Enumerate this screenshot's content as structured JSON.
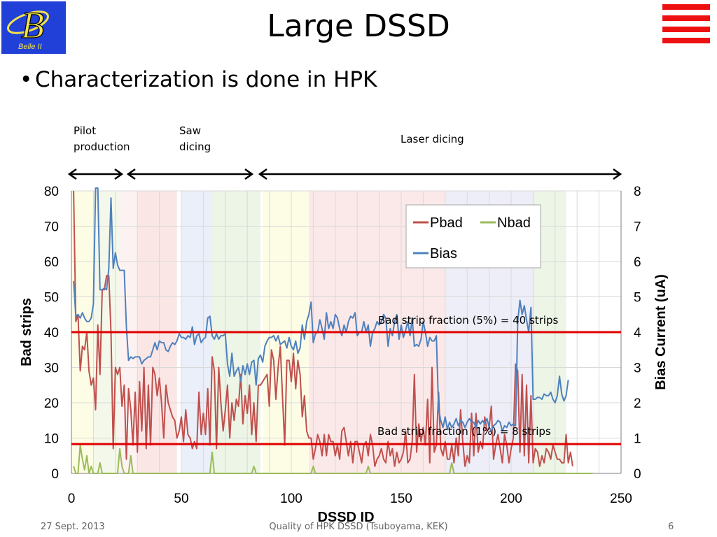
{
  "slide": {
    "title": "Large DSSD",
    "bullet": "Characterization is done in HPK",
    "logo_text": "Belle II",
    "footer_date": "27 Sept. 2013",
    "footer_title": "Quality of HPK DSSD (Tsuboyama, KEK)",
    "footer_page": "6",
    "menu_icon": "hamburger-menu-icon",
    "logo_icon": "belle2-logo-icon"
  },
  "annotations": {
    "pilot": [
      "Pilot",
      "production"
    ],
    "saw": [
      "Saw",
      "dicing"
    ],
    "laser": "Laser dicing"
  },
  "colors": {
    "pbad": "#c0504d",
    "nbad": "#9bbb59",
    "bias": "#4f81bd",
    "threshold": "#e00000",
    "title_bar": "#ee1111",
    "logo_bg": "#2040d8"
  },
  "chart_data": {
    "type": "line",
    "xlabel": "DSSD ID",
    "ylabel": "Bad strips",
    "y2label": "Bias Current (uA)",
    "xlim": [
      0,
      250
    ],
    "ylim": [
      0,
      80
    ],
    "y2lim": [
      0,
      8
    ],
    "xticks": [
      0,
      50,
      100,
      150,
      200,
      250
    ],
    "yticks": [
      0,
      10,
      20,
      30,
      40,
      50,
      60,
      70,
      80
    ],
    "y2ticks": [
      0,
      1,
      2,
      3,
      4,
      5,
      6,
      7,
      8
    ],
    "grid": true,
    "legend": "top-right",
    "thresholds": [
      {
        "label": "Bad strip fraction (5%) = 40 strips",
        "value": 40
      },
      {
        "label": "Bad strip fraction (1%) = 8 strips",
        "value": 8.3
      }
    ],
    "series": [
      {
        "name": "Pbad",
        "axis": "left",
        "x_start": 1,
        "values": [
          80,
          43,
          45,
          29,
          36,
          35,
          40,
          29,
          25,
          27,
          18,
          42,
          28,
          52,
          52,
          56,
          56,
          40,
          7,
          30,
          28,
          30,
          19,
          25,
          4,
          24,
          18,
          8,
          23,
          6,
          26,
          12,
          30,
          7,
          25,
          8,
          30,
          28,
          22,
          27,
          20,
          10,
          25,
          20,
          18,
          16,
          15,
          10,
          12,
          16,
          9,
          18,
          11,
          10,
          7,
          9,
          7,
          23,
          11,
          17,
          11,
          24,
          8,
          33,
          29,
          7,
          30,
          20,
          12,
          18,
          25,
          10,
          20,
          15,
          21,
          19,
          28,
          14,
          22,
          17,
          25,
          11,
          20,
          9,
          25,
          25,
          26,
          27,
          28,
          19,
          35,
          32,
          21,
          30,
          36,
          22,
          8,
          32,
          32,
          26,
          34,
          24,
          32,
          28,
          16,
          22,
          12,
          10,
          10,
          4,
          7,
          11,
          9,
          5,
          11,
          5,
          11,
          9,
          9,
          5,
          8,
          4,
          12,
          13,
          9,
          5,
          9,
          3,
          9,
          9,
          6,
          3,
          8,
          9,
          5,
          11,
          8,
          2,
          4,
          5,
          7,
          4,
          3,
          9,
          5,
          7,
          2,
          6,
          3,
          4,
          6,
          12,
          3,
          4,
          9,
          28,
          6,
          14,
          9,
          13,
          8,
          21,
          3,
          30,
          6,
          8,
          23,
          7,
          5,
          9,
          4,
          4,
          8,
          3,
          10,
          5,
          18,
          9,
          2,
          5,
          3,
          17,
          5,
          17,
          6,
          9,
          7,
          16,
          12,
          13,
          19,
          4,
          8,
          11,
          7,
          3,
          11,
          8,
          3,
          7,
          10,
          31,
          29,
          6,
          28,
          5,
          25,
          3,
          22,
          3,
          7,
          6,
          2,
          5,
          3,
          7,
          6,
          4,
          8,
          6,
          4,
          4,
          3,
          3,
          11,
          3,
          6,
          2
        ],
        "color": "#c0504d"
      },
      {
        "name": "Nbad",
        "axis": "left",
        "x_start": 1,
        "values": [
          2,
          0,
          0,
          8,
          4,
          1,
          5,
          0,
          2,
          0,
          0,
          0,
          3,
          0,
          0,
          0,
          0,
          0,
          0,
          0,
          0,
          7,
          2,
          0,
          0,
          0,
          5,
          0,
          0,
          0,
          0,
          0,
          0,
          0,
          0,
          0,
          0,
          0,
          0,
          0,
          0,
          0,
          0,
          0,
          0,
          0,
          0,
          0,
          0,
          0,
          0,
          0,
          0,
          0,
          0,
          0,
          0,
          0,
          0,
          0,
          0,
          0,
          0,
          6,
          0,
          0,
          0,
          0,
          0,
          0,
          0,
          0,
          0,
          0,
          0,
          0,
          0,
          0,
          0,
          0,
          0,
          0,
          2,
          0,
          0,
          0,
          0,
          0,
          0,
          0,
          0,
          0,
          0,
          0,
          0,
          0,
          0,
          0,
          0,
          0,
          0,
          0,
          0,
          0,
          0,
          0,
          0,
          0,
          0,
          2,
          0,
          0,
          0,
          0,
          0,
          0,
          0,
          0,
          0,
          0,
          0,
          0,
          0,
          0,
          0,
          0,
          0,
          0,
          0,
          0,
          0,
          0,
          0,
          0,
          2,
          0,
          0,
          0,
          0,
          0,
          0,
          0,
          0,
          0,
          0,
          0,
          0,
          0,
          0,
          0,
          0,
          0,
          0,
          0,
          0,
          0,
          0,
          0,
          0,
          0,
          0,
          0,
          0,
          0,
          0,
          0,
          0,
          0,
          0,
          0,
          0,
          0,
          3,
          0,
          0,
          0,
          0,
          0,
          0,
          0,
          0,
          0,
          0,
          0,
          0,
          0,
          0,
          0,
          0,
          0,
          0,
          0,
          0,
          0,
          0,
          0,
          0,
          0,
          0,
          0,
          0,
          0,
          0,
          0,
          0,
          0,
          0,
          0,
          0,
          0,
          0,
          0,
          0,
          0,
          0,
          0,
          0,
          0,
          0,
          0,
          0,
          0,
          0,
          0,
          0,
          0,
          0,
          0,
          0,
          0,
          0,
          0,
          0,
          0,
          0,
          0,
          0
        ],
        "color": "#9bbb59"
      },
      {
        "name": "Bias",
        "axis": "right",
        "x_start": 1,
        "values": [
          5.45,
          4.45,
          4.5,
          4.4,
          4.55,
          4.4,
          4.3,
          4.3,
          4.4,
          4.8,
          8.5,
          8.5,
          5.2,
          5.2,
          5.25,
          5.2,
          5.8,
          7.8,
          5.8,
          6.25,
          5.9,
          5.75,
          5.75,
          5.75,
          4.15,
          3.2,
          3.3,
          3.25,
          3.3,
          3.3,
          3.3,
          3.1,
          3.2,
          3.25,
          3.3,
          3.3,
          3.5,
          3.7,
          3.5,
          3.75,
          3.7,
          3.7,
          3.5,
          3.45,
          3.6,
          3.7,
          3.65,
          3.75,
          3.95,
          3.85,
          3.85,
          3.8,
          3.9,
          3.85,
          4.15,
          3.65,
          3.9,
          3.95,
          3.7,
          3.8,
          3.85,
          4.4,
          4.45,
          3.9,
          3.8,
          3.95,
          3.8,
          3.9,
          3.9,
          3.95,
          3.1,
          2.75,
          3.4,
          2.75,
          2.9,
          3.0,
          2.6,
          3.05,
          2.8,
          3.1,
          2.8,
          3.15,
          3.2,
          2.5,
          3.25,
          3.35,
          3.15,
          3.6,
          3.75,
          3.85,
          3.85,
          3.9,
          3.75,
          3.9,
          3.65,
          3.7,
          3.75,
          3.55,
          3.85,
          3.6,
          3.5,
          3.75,
          3.4,
          3.55,
          4.2,
          3.8,
          4.3,
          4.5,
          4.85,
          3.7,
          3.95,
          4.0,
          4.35,
          4.1,
          3.8,
          4.55,
          4.1,
          4.3,
          4.1,
          4.5,
          4.4,
          4.1,
          3.9,
          4.2,
          4.0,
          4.3,
          4.45,
          4.4,
          4.55,
          3.9,
          4.0,
          4.0,
          4.3,
          4.0,
          4.2,
          3.6,
          4.0,
          4.1,
          4.3,
          4.2,
          4.3,
          4.5,
          4.4,
          3.6,
          4.1,
          3.9,
          4.3,
          4.5,
          3.8,
          4.2,
          3.85,
          4.05,
          4.3,
          3.9,
          4.4,
          3.6,
          3.65,
          3.6,
          3.8,
          4.3,
          4.0,
          3.6,
          3.85,
          3.75,
          3.75,
          3.9,
          1.8,
          1.5,
          1.3,
          1.6,
          1.25,
          1.45,
          1.3,
          1.4,
          1.55,
          1.35,
          1.5,
          1.45,
          1.3,
          1.45,
          1.55,
          1.45,
          1.45,
          1.3,
          1.5,
          1.4,
          1.5,
          1.4,
          1.55,
          1.3,
          1.2,
          1.35,
          1.4,
          1.5,
          1.45,
          1.2,
          1.35,
          1.3,
          1.45,
          1.35,
          1.4,
          1.35,
          4.3,
          4.9,
          4.5,
          4.75,
          4.35,
          4.0,
          4.7,
          2.1,
          2.1,
          2.15,
          2.15,
          2.1,
          2.25,
          2.2,
          2.2,
          2.3,
          2.1,
          2.0,
          2.2,
          2.75,
          2.25,
          2.05,
          2.2,
          2.65
        ],
        "color": "#4f81bd"
      }
    ]
  }
}
